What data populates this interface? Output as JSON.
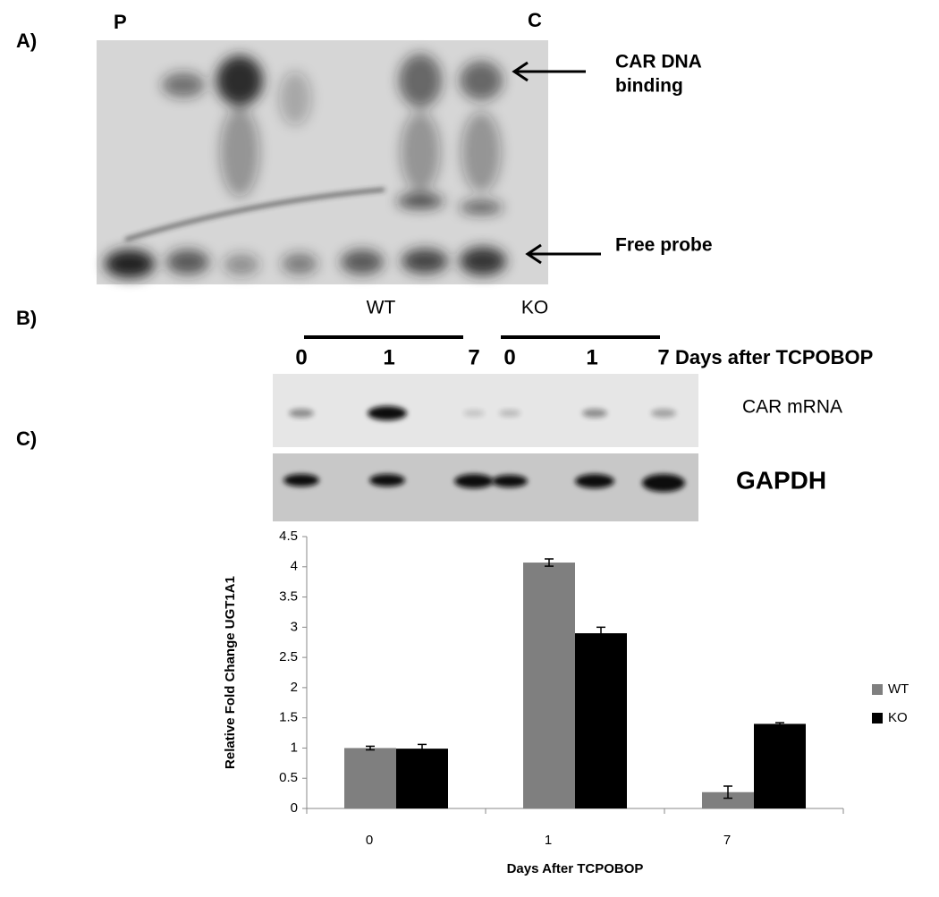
{
  "panels": {
    "a": {
      "label": "A)",
      "lane_left": "P",
      "lane_right": "C",
      "upper_arrow": [
        "CAR DNA",
        "binding"
      ],
      "lower_arrow": "Free probe"
    },
    "b": {
      "label": "B)",
      "group_left": "WT",
      "group_right": "KO",
      "lanes": [
        "0",
        "1",
        "7",
        "0",
        "1",
        "7"
      ],
      "lanes_caption": "Days after TCPOBOP",
      "row_top": "CAR mRNA",
      "row_bottom": "GAPDH"
    },
    "c": {
      "label": "C)"
    }
  },
  "chart_data": {
    "type": "bar",
    "categories": [
      "0",
      "1",
      "7"
    ],
    "series": [
      {
        "name": "WT",
        "color": "#7f7f7f",
        "values": [
          1.0,
          4.07,
          0.27
        ],
        "errors": [
          0.03,
          0.06,
          0.1
        ]
      },
      {
        "name": "KO",
        "color": "#000000",
        "values": [
          0.99,
          2.9,
          1.4
        ],
        "errors": [
          0.07,
          0.1,
          0.02
        ]
      }
    ],
    "ylim": [
      0,
      4.5
    ],
    "yticks": [
      0,
      0.5,
      1,
      1.5,
      2,
      2.5,
      3,
      3.5,
      4,
      4.5
    ],
    "y_label": "Relative Fold Change UGT1A1",
    "x_label": "Days After TCPOBOP",
    "legend": "right"
  }
}
